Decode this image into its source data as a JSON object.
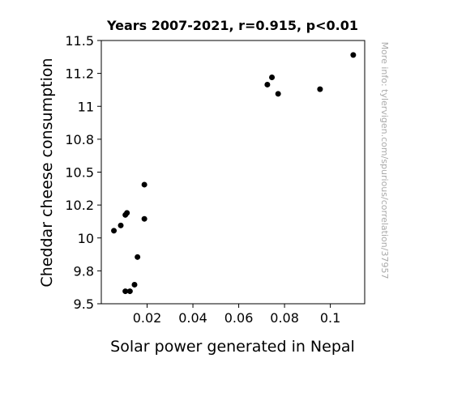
{
  "chart_data": {
    "type": "scatter",
    "title": "Years 2007-2021, r=0.915, p<0.01",
    "xlabel": "Solar power generated in Nepal",
    "ylabel": "Cheddar cheese consumption",
    "xlim": [
      0,
      0.115
    ],
    "ylim": [
      9.5,
      11.5
    ],
    "x_ticks": [
      0.02,
      0.04,
      0.06,
      0.08,
      0.1
    ],
    "x_tick_labels": [
      "0.02",
      "0.04",
      "0.06",
      "0.08",
      "0.1"
    ],
    "y_ticks": [
      9.5,
      9.75,
      10,
      10.25,
      10.5,
      10.75,
      11,
      11.25,
      11.5
    ],
    "y_tick_labels": [
      "9.5",
      "9.8",
      "10",
      "10.2",
      "10.5",
      "10.8",
      "11",
      "11.2",
      "11.5"
    ],
    "grid": false,
    "marker_color": "#000000",
    "points": [
      {
        "x": 0.0055,
        "y": 10.055
      },
      {
        "x": 0.0085,
        "y": 10.095
      },
      {
        "x": 0.0105,
        "y": 10.175
      },
      {
        "x": 0.0112,
        "y": 10.19
      },
      {
        "x": 0.0188,
        "y": 10.405
      },
      {
        "x": 0.0188,
        "y": 10.145
      },
      {
        "x": 0.0158,
        "y": 9.855
      },
      {
        "x": 0.0145,
        "y": 9.645
      },
      {
        "x": 0.0105,
        "y": 9.595
      },
      {
        "x": 0.0125,
        "y": 9.595
      },
      {
        "x": 0.0725,
        "y": 11.165
      },
      {
        "x": 0.0745,
        "y": 11.22
      },
      {
        "x": 0.0772,
        "y": 11.095
      },
      {
        "x": 0.0955,
        "y": 11.13
      },
      {
        "x": 0.11,
        "y": 11.39
      }
    ]
  },
  "watermark": "More info: tylervigen.com/spurious/correlation/37957"
}
